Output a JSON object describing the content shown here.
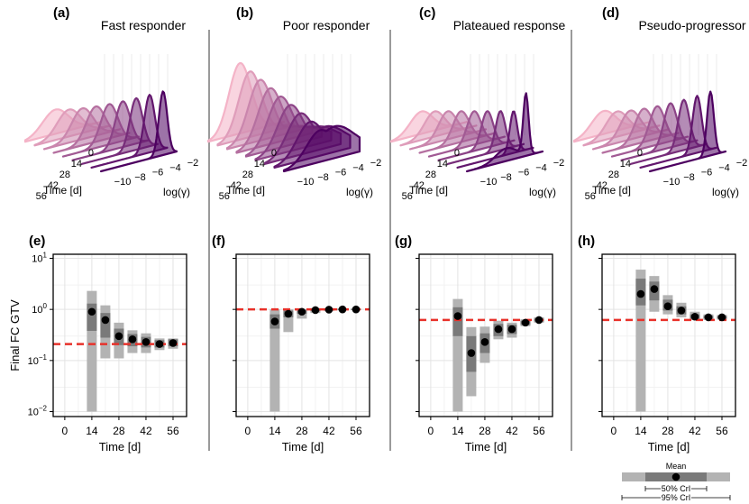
{
  "figure": {
    "ylabel": "Final FC GTV",
    "xlabel": "Time [d]",
    "ridge_xlabel": "Time [d]",
    "ridge_ylabel": "log(γ)",
    "time_ticks": [
      "0",
      "14",
      "28",
      "42",
      "56"
    ],
    "gamma_ticks": [
      "−10",
      "−8",
      "−6",
      "−4",
      "−2"
    ],
    "y_ticks": [
      {
        "base": "10",
        "exp": "1"
      },
      {
        "base": "10",
        "exp": "0"
      },
      {
        "base": "10",
        "exp": "−1"
      },
      {
        "base": "10",
        "exp": "−2"
      }
    ],
    "legend": {
      "mean": "Mean",
      "ci50": "50% CrI",
      "ci95": "95% CrI"
    },
    "colors": {
      "target_line": "#e8312a",
      "ci95": "#b3b3b3",
      "ci50": "#7a7a7a",
      "mean": "#000000",
      "ridge_light": "#f4b3c7",
      "ridge_dark": "#4d0060",
      "divider": "#9a9a9a"
    }
  },
  "chart_data": [
    {
      "type": "scatter",
      "panel": "(a)",
      "title": "Fast responder",
      "ridge_shape": "fast",
      "lower_panel": "(e)",
      "x": [
        14,
        21,
        28,
        35,
        42,
        49,
        56
      ],
      "mean": [
        0.9,
        0.62,
        0.3,
        0.26,
        0.23,
        0.21,
        0.22
      ],
      "ci50": [
        [
          0.38,
          1.3
        ],
        [
          0.28,
          0.85
        ],
        [
          0.2,
          0.42
        ],
        [
          0.19,
          0.33
        ],
        [
          0.18,
          0.29
        ],
        [
          0.18,
          0.25
        ],
        [
          0.19,
          0.26
        ]
      ],
      "ci95": [
        [
          0.01,
          2.3
        ],
        [
          0.11,
          1.2
        ],
        [
          0.11,
          0.55
        ],
        [
          0.14,
          0.39
        ],
        [
          0.14,
          0.34
        ],
        [
          0.16,
          0.27
        ],
        [
          0.17,
          0.27
        ]
      ],
      "reference_line": 0.21,
      "xlim": [
        -6,
        63
      ],
      "ylim": [
        0.008,
        12
      ],
      "yscale": "log"
    },
    {
      "type": "scatter",
      "panel": "(b)",
      "title": "Poor responder",
      "ridge_shape": "poor",
      "lower_panel": "(f)",
      "x": [
        14,
        21,
        28,
        35,
        42,
        49,
        56
      ],
      "mean": [
        0.58,
        0.82,
        0.9,
        0.97,
        0.99,
        1.0,
        1.0
      ],
      "ci50": [
        [
          0.42,
          0.8
        ],
        [
          0.7,
          0.95
        ],
        [
          0.82,
          0.98
        ],
        [
          0.92,
          1.02
        ],
        [
          0.96,
          1.03
        ],
        [
          0.97,
          1.03
        ],
        [
          0.97,
          1.02
        ]
      ],
      "ci95": [
        [
          0.01,
          1.0
        ],
        [
          0.36,
          1.0
        ],
        [
          0.66,
          1.0
        ],
        [
          0.85,
          1.05
        ],
        [
          0.92,
          1.05
        ],
        [
          0.95,
          1.05
        ],
        [
          0.96,
          1.05
        ]
      ],
      "reference_line": 1.0,
      "xlim": [
        -6,
        63
      ],
      "ylim": [
        0.008,
        12
      ],
      "yscale": "log"
    },
    {
      "type": "scatter",
      "panel": "(c)",
      "title": "Plateaued response",
      "ridge_shape": "plateau",
      "lower_panel": "(g)",
      "x": [
        14,
        21,
        28,
        35,
        42,
        49,
        56
      ],
      "mean": [
        0.74,
        0.14,
        0.23,
        0.41,
        0.41,
        0.55,
        0.62
      ],
      "ci50": [
        [
          0.3,
          1.1
        ],
        [
          0.06,
          0.3
        ],
        [
          0.14,
          0.34
        ],
        [
          0.3,
          0.52
        ],
        [
          0.33,
          0.5
        ],
        [
          0.5,
          0.6
        ],
        [
          0.58,
          0.66
        ]
      ],
      "ci95": [
        [
          0.01,
          1.6
        ],
        [
          0.02,
          0.45
        ],
        [
          0.09,
          0.46
        ],
        [
          0.26,
          0.6
        ],
        [
          0.28,
          0.55
        ],
        [
          0.47,
          0.64
        ],
        [
          0.55,
          0.7
        ]
      ],
      "reference_line": 0.62,
      "xlim": [
        -6,
        63
      ],
      "ylim": [
        0.008,
        12
      ],
      "yscale": "log"
    },
    {
      "type": "scatter",
      "panel": "(d)",
      "title": "Pseudo-progressor",
      "ridge_shape": "pseudo",
      "lower_panel": "(h)",
      "x": [
        14,
        21,
        28,
        35,
        42,
        49,
        56
      ],
      "mean": [
        2.0,
        2.5,
        1.15,
        0.95,
        0.72,
        0.7,
        0.7
      ],
      "ci50": [
        [
          1.2,
          4.0
        ],
        [
          1.5,
          3.5
        ],
        [
          0.95,
          1.55
        ],
        [
          0.8,
          1.15
        ],
        [
          0.66,
          0.8
        ],
        [
          0.66,
          0.75
        ],
        [
          0.66,
          0.74
        ]
      ],
      "ci95": [
        [
          0.01,
          6.0
        ],
        [
          0.9,
          4.5
        ],
        [
          0.8,
          1.9
        ],
        [
          0.7,
          1.35
        ],
        [
          0.62,
          0.9
        ],
        [
          0.62,
          0.8
        ],
        [
          0.63,
          0.78
        ]
      ],
      "reference_line": 0.62,
      "xlim": [
        -6,
        63
      ],
      "ylim": [
        0.008,
        12
      ],
      "yscale": "log"
    }
  ]
}
